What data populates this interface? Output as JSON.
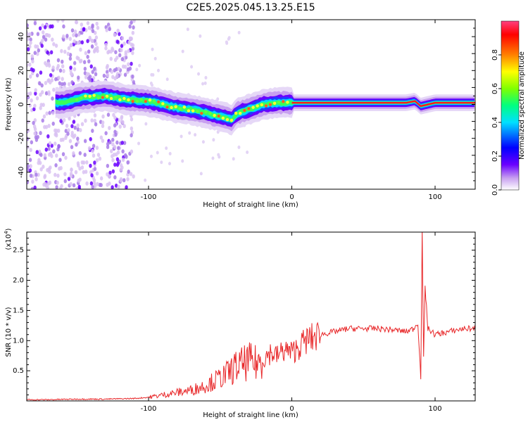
{
  "title": "C2E5.2025.045.13.25.E15",
  "chart_data": [
    {
      "type": "heatmap",
      "xlabel": "Height of straight line (km)",
      "ylabel": "Frequency (Hz)",
      "xlim": [
        -185,
        128
      ],
      "ylim": [
        -50,
        50
      ],
      "x_ticks": [
        -100,
        0,
        100
      ],
      "y_ticks": [
        -40,
        -20,
        0,
        20,
        40
      ],
      "colorbar": {
        "label": "Normalized spectral amplitude",
        "range": [
          0,
          1
        ],
        "ticks": [
          "0.0",
          "0.2",
          "0.4",
          "0.6",
          "0.8"
        ],
        "colors": [
          "#ffffff",
          "#c8a0f0",
          "#6a00ff",
          "#0000ff",
          "#00e0ff",
          "#00ff80",
          "#80ff00",
          "#ffff00",
          "#ff8000",
          "#ff0000",
          "#ff4080"
        ]
      },
      "ridge": {
        "x": [
          -160,
          -145,
          -130,
          -115,
          -100,
          -90,
          -80,
          -70,
          -60,
          -50,
          -42,
          -38,
          -30,
          -20,
          -10,
          0,
          20,
          40,
          60,
          80,
          86,
          90,
          100,
          128
        ],
        "y": [
          1,
          4,
          5,
          3,
          2,
          0,
          -2,
          -3,
          -5,
          -7,
          -9,
          -5,
          -3,
          0,
          1,
          1,
          1,
          1,
          1,
          1,
          2,
          -1,
          1,
          1
        ]
      }
    },
    {
      "type": "line",
      "xlabel": "Height of straight line (km)",
      "ylabel": "SNR (10 * v/v)",
      "exponent_label": "(x10",
      "exponent_value": "4",
      "exponent_close": ")",
      "xlim": [
        -185,
        128
      ],
      "ylim": [
        0,
        2.8
      ],
      "x_ticks": [
        -100,
        0,
        100
      ],
      "y_ticks": [
        "0.5",
        "1.0",
        "1.5",
        "2.0",
        "2.5"
      ],
      "series_color": "#e8282a",
      "x": [
        -185,
        -170,
        -150,
        -130,
        -110,
        -100,
        -90,
        -80,
        -70,
        -60,
        -50,
        -45,
        -40,
        -35,
        -30,
        -25,
        -20,
        -15,
        -10,
        -5,
        0,
        5,
        10,
        15,
        20,
        30,
        40,
        50,
        60,
        70,
        80,
        85,
        88,
        90,
        91,
        92,
        93,
        95,
        100,
        110,
        120,
        128
      ],
      "y": [
        0.02,
        0.02,
        0.03,
        0.03,
        0.04,
        0.06,
        0.1,
        0.14,
        0.18,
        0.26,
        0.38,
        0.45,
        0.55,
        0.6,
        0.65,
        0.62,
        0.7,
        0.8,
        0.75,
        0.85,
        0.8,
        0.9,
        1.0,
        1.05,
        1.1,
        1.15,
        1.2,
        1.2,
        1.2,
        1.18,
        1.15,
        1.2,
        1.3,
        0.4,
        2.8,
        0.7,
        1.9,
        1.2,
        1.1,
        1.15,
        1.2,
        1.2
      ]
    }
  ]
}
